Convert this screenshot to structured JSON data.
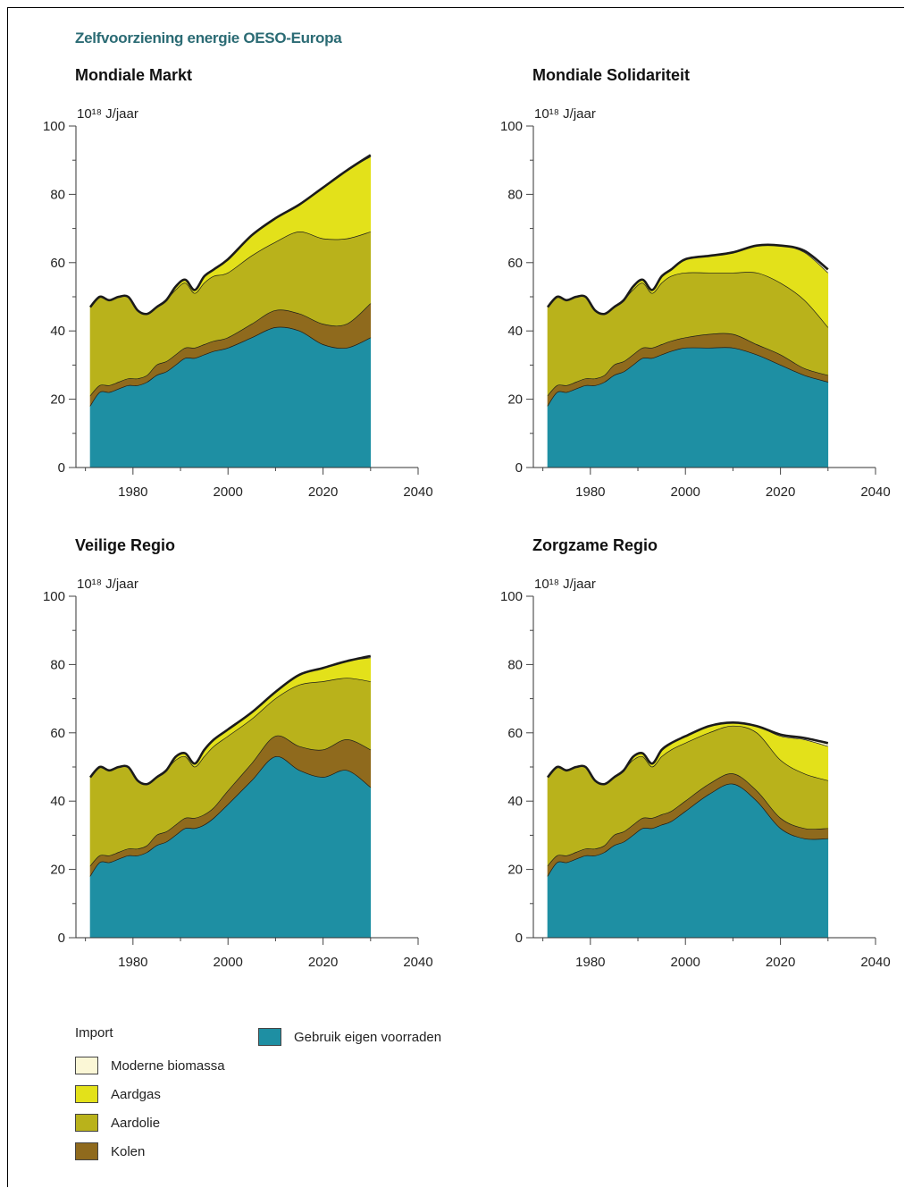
{
  "title": "Zelfvoorziening energie OESO-Europa",
  "colors": {
    "biomassa": "#fbf7d6",
    "aardgas": "#e3e11a",
    "aardolie": "#b9b21b",
    "kolen": "#8f6a1d",
    "eigen": "#1e8fa3"
  },
  "legend": {
    "import_label": "Import",
    "eigen_label": "Gebruik eigen voorraden",
    "items": [
      {
        "key": "biomassa",
        "label": "Moderne biomassa"
      },
      {
        "key": "aardgas",
        "label": "Aardgas"
      },
      {
        "key": "aardolie",
        "label": "Aardolie"
      },
      {
        "key": "kolen",
        "label": "Kolen"
      }
    ]
  },
  "chart_data": [
    {
      "type": "area",
      "title": "Mondiale Markt",
      "unit": "10¹⁸ J/jaar",
      "xlim": [
        1968,
        2040
      ],
      "ylim": [
        0,
        100
      ],
      "xticks": [
        1980,
        2000,
        2020,
        2040
      ],
      "yticks": [
        0,
        20,
        40,
        60,
        80,
        100
      ],
      "x": [
        1971,
        1973,
        1975,
        1977,
        1979,
        1981,
        1983,
        1985,
        1987,
        1989,
        1991,
        1993,
        1995,
        1997,
        2000,
        2005,
        2010,
        2015,
        2020,
        2025,
        2030
      ],
      "series": [
        {
          "name": "Gebruik eigen voorraden",
          "key": "eigen",
          "values": [
            18,
            22,
            22,
            23,
            24,
            24,
            25,
            27,
            28,
            30,
            32,
            32,
            33,
            34,
            35,
            38,
            41,
            40,
            36,
            35,
            38
          ]
        },
        {
          "name": "Kolen",
          "key": "kolen",
          "values": [
            3,
            2,
            2,
            2,
            2,
            2,
            2,
            3,
            3,
            3,
            3,
            3,
            3,
            3,
            3,
            4,
            5,
            5,
            6,
            7,
            10
          ]
        },
        {
          "name": "Aardolie",
          "key": "aardolie",
          "values": [
            26,
            26,
            25,
            25,
            24,
            20,
            18,
            17,
            18,
            19,
            19,
            16,
            18,
            19,
            19,
            20,
            20,
            24,
            25,
            25,
            21
          ]
        },
        {
          "name": "Aardgas",
          "key": "aardgas",
          "values": [
            0,
            0,
            0,
            0,
            0,
            0,
            0,
            0,
            0,
            1,
            1,
            1,
            2,
            2,
            4,
            6,
            7,
            8,
            15,
            20,
            22
          ]
        },
        {
          "name": "Moderne biomassa",
          "key": "biomassa",
          "values": [
            0,
            0,
            0,
            0,
            0,
            0,
            0,
            0,
            0,
            0,
            0,
            0,
            0,
            0,
            0,
            0,
            0,
            0,
            0,
            0,
            0.5
          ]
        }
      ]
    },
    {
      "type": "area",
      "title": "Mondiale Solidariteit",
      "unit": "10¹⁸ J/jaar",
      "xlim": [
        1968,
        2040
      ],
      "ylim": [
        0,
        100
      ],
      "xticks": [
        1980,
        2000,
        2020,
        2040
      ],
      "yticks": [
        0,
        20,
        40,
        60,
        80,
        100
      ],
      "x": [
        1971,
        1973,
        1975,
        1977,
        1979,
        1981,
        1983,
        1985,
        1987,
        1989,
        1991,
        1993,
        1995,
        1997,
        2000,
        2005,
        2010,
        2015,
        2020,
        2025,
        2030
      ],
      "series": [
        {
          "name": "Gebruik eigen voorraden",
          "key": "eigen",
          "values": [
            18,
            22,
            22,
            23,
            24,
            24,
            25,
            27,
            28,
            30,
            32,
            32,
            33,
            34,
            35,
            35,
            35,
            33,
            30,
            27,
            25
          ]
        },
        {
          "name": "Kolen",
          "key": "kolen",
          "values": [
            3,
            2,
            2,
            2,
            2,
            2,
            2,
            3,
            3,
            3,
            3,
            3,
            3,
            3,
            3,
            4,
            4,
            3,
            3,
            2,
            2
          ]
        },
        {
          "name": "Aardolie",
          "key": "aardolie",
          "values": [
            26,
            26,
            25,
            25,
            24,
            20,
            18,
            17,
            18,
            19,
            19,
            16,
            18,
            19,
            19,
            18,
            18,
            21,
            21,
            20,
            14
          ]
        },
        {
          "name": "Aardgas",
          "key": "aardgas",
          "values": [
            0,
            0,
            0,
            0,
            0,
            0,
            0,
            0,
            0,
            1,
            1,
            1,
            2,
            2,
            4,
            5,
            6,
            8,
            11,
            14,
            16
          ]
        },
        {
          "name": "Moderne biomassa",
          "key": "biomassa",
          "values": [
            0,
            0,
            0,
            0,
            0,
            0,
            0,
            0,
            0,
            0,
            0,
            0,
            0,
            0,
            0,
            0,
            0,
            0,
            0,
            0.5,
            1
          ]
        }
      ]
    },
    {
      "type": "area",
      "title": "Veilige Regio",
      "unit": "10¹⁸ J/jaar",
      "xlim": [
        1968,
        2040
      ],
      "ylim": [
        0,
        100
      ],
      "xticks": [
        1980,
        2000,
        2020,
        2040
      ],
      "yticks": [
        0,
        20,
        40,
        60,
        80,
        100
      ],
      "x": [
        1971,
        1973,
        1975,
        1977,
        1979,
        1981,
        1983,
        1985,
        1987,
        1989,
        1991,
        1993,
        1995,
        1997,
        2000,
        2005,
        2010,
        2015,
        2020,
        2025,
        2030
      ],
      "series": [
        {
          "name": "Gebruik eigen voorraden",
          "key": "eigen",
          "values": [
            18,
            22,
            22,
            23,
            24,
            24,
            25,
            27,
            28,
            30,
            32,
            32,
            33,
            35,
            39,
            46,
            53,
            49,
            47,
            49,
            44
          ]
        },
        {
          "name": "Kolen",
          "key": "kolen",
          "values": [
            3,
            2,
            2,
            2,
            2,
            2,
            2,
            3,
            3,
            3,
            3,
            3,
            3,
            3,
            4,
            5,
            6,
            7,
            8,
            9,
            11
          ]
        },
        {
          "name": "Aardolie",
          "key": "aardolie",
          "values": [
            26,
            26,
            25,
            25,
            24,
            20,
            18,
            17,
            18,
            19,
            18,
            15,
            17,
            18,
            16,
            13,
            11,
            18,
            20,
            18,
            20
          ]
        },
        {
          "name": "Aardgas",
          "key": "aardgas",
          "values": [
            0,
            0,
            0,
            0,
            0,
            0,
            0,
            0,
            0,
            1,
            1,
            1,
            2,
            2,
            2,
            2,
            2,
            3,
            4,
            5,
            7
          ]
        },
        {
          "name": "Moderne biomassa",
          "key": "biomassa",
          "values": [
            0,
            0,
            0,
            0,
            0,
            0,
            0,
            0,
            0,
            0,
            0,
            0,
            0,
            0,
            0,
            0,
            0,
            0,
            0,
            0,
            0.5
          ]
        }
      ]
    },
    {
      "type": "area",
      "title": "Zorgzame Regio",
      "unit": "10¹⁸ J/jaar",
      "xlim": [
        1968,
        2040
      ],
      "ylim": [
        0,
        100
      ],
      "xticks": [
        1980,
        2000,
        2020,
        2040
      ],
      "yticks": [
        0,
        20,
        40,
        60,
        80,
        100
      ],
      "x": [
        1971,
        1973,
        1975,
        1977,
        1979,
        1981,
        1983,
        1985,
        1987,
        1989,
        1991,
        1993,
        1995,
        1997,
        2000,
        2005,
        2010,
        2015,
        2020,
        2025,
        2030
      ],
      "series": [
        {
          "name": "Gebruik eigen voorraden",
          "key": "eigen",
          "values": [
            18,
            22,
            22,
            23,
            24,
            24,
            25,
            27,
            28,
            30,
            32,
            32,
            33,
            34,
            37,
            42,
            45,
            40,
            32,
            29,
            29
          ]
        },
        {
          "name": "Kolen",
          "key": "kolen",
          "values": [
            3,
            2,
            2,
            2,
            2,
            2,
            2,
            3,
            3,
            3,
            3,
            3,
            3,
            3,
            3,
            3,
            3,
            3,
            3,
            3,
            3
          ]
        },
        {
          "name": "Aardolie",
          "key": "aardolie",
          "values": [
            26,
            26,
            25,
            25,
            24,
            20,
            18,
            17,
            18,
            19,
            18,
            15,
            17,
            18,
            17,
            15,
            14,
            17,
            17,
            16,
            14
          ]
        },
        {
          "name": "Aardgas",
          "key": "aardgas",
          "values": [
            0,
            0,
            0,
            0,
            0,
            0,
            0,
            0,
            0,
            1,
            1,
            1,
            2,
            2,
            2,
            2,
            1,
            2,
            7,
            10,
            10
          ]
        },
        {
          "name": "Moderne biomassa",
          "key": "biomassa",
          "values": [
            0,
            0,
            0,
            0,
            0,
            0,
            0,
            0,
            0,
            0,
            0,
            0,
            0,
            0,
            0,
            0,
            0,
            0,
            0.5,
            0.5,
            1
          ]
        }
      ]
    }
  ]
}
